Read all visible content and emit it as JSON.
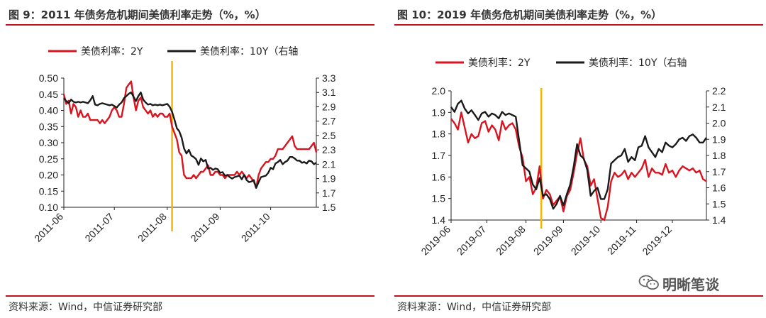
{
  "source_note": "资料来源：Wind，中信证券研究部",
  "watermark": "明晰笔谈",
  "colors": {
    "series_2y": "#d9141f",
    "series_10y": "#1a1a1a",
    "marker": "#f2b705",
    "rule": "#c0121e"
  },
  "chart_data": [
    {
      "type": "line",
      "title": "图 9：2011 年债务危机期间美债利率走势（%，%）",
      "legend": "top-center",
      "grid": false,
      "x_labels": [
        "2011-06",
        "2011-07",
        "2011-08",
        "2011-09",
        "2011-10"
      ],
      "x_range": [
        0,
        105
      ],
      "x_label_positions": [
        0,
        21,
        43,
        65,
        86
      ],
      "vline_x": 45,
      "y_left": {
        "ticks": [
          "0.10",
          "0.15",
          "0.20",
          "0.25",
          "0.30",
          "0.35",
          "0.40",
          "0.45",
          "0.50"
        ],
        "range": [
          0.1,
          0.5
        ]
      },
      "y_right": {
        "ticks": [
          "1.5",
          "1.7",
          "1.9",
          "2.1",
          "2.3",
          "2.5",
          "2.7",
          "2.9",
          "3.1",
          "3.3"
        ],
        "range": [
          1.5,
          3.3
        ]
      },
      "series": [
        {
          "name": "美债利率：2Y",
          "axis": "left",
          "x": [
            0,
            1,
            2,
            3,
            4,
            5,
            6,
            7,
            8,
            9,
            10,
            11,
            12,
            13,
            14,
            15,
            16,
            17,
            18,
            19,
            20,
            21,
            22,
            23,
            24,
            25,
            26,
            27,
            28,
            29,
            30,
            31,
            32,
            33,
            34,
            35,
            36,
            37,
            38,
            39,
            40,
            41,
            42,
            43,
            44,
            45,
            46,
            47,
            48,
            49,
            50,
            51,
            52,
            53,
            54,
            55,
            56,
            57,
            58,
            59,
            60,
            61,
            62,
            63,
            64,
            65,
            66,
            67,
            68,
            69,
            70,
            71,
            72,
            73,
            74,
            75,
            76,
            77,
            78,
            79,
            80,
            81,
            82,
            83,
            84,
            85,
            86,
            87,
            88,
            89,
            90,
            91,
            92,
            93,
            94,
            95,
            96,
            97,
            98,
            99,
            100,
            101,
            102,
            103,
            104,
            105
          ],
          "values": [
            0.45,
            0.42,
            0.43,
            0.39,
            0.42,
            0.41,
            0.38,
            0.4,
            0.38,
            0.38,
            0.39,
            0.37,
            0.37,
            0.37,
            0.37,
            0.36,
            0.37,
            0.36,
            0.37,
            0.38,
            0.4,
            0.41,
            0.4,
            0.38,
            0.38,
            0.42,
            0.47,
            0.48,
            0.49,
            0.44,
            0.4,
            0.43,
            0.44,
            0.41,
            0.4,
            0.39,
            0.4,
            0.38,
            0.39,
            0.38,
            0.39,
            0.39,
            0.38,
            0.38,
            0.39,
            0.35,
            0.33,
            0.31,
            0.27,
            0.26,
            0.2,
            0.19,
            0.19,
            0.19,
            0.2,
            0.19,
            0.2,
            0.21,
            0.21,
            0.22,
            0.23,
            0.2,
            0.2,
            0.21,
            0.21,
            0.2,
            0.2,
            0.19,
            0.2,
            0.2,
            0.2,
            0.2,
            0.21,
            0.2,
            0.21,
            0.2,
            0.19,
            0.2,
            0.19,
            0.18,
            0.16,
            0.2,
            0.22,
            0.23,
            0.24,
            0.24,
            0.25,
            0.25,
            0.26,
            0.28,
            0.28,
            0.28,
            0.29,
            0.3,
            0.31,
            0.32,
            0.29,
            0.28,
            0.28,
            0.28,
            0.28,
            0.28,
            0.28,
            0.29,
            0.3,
            0.27
          ]
        },
        {
          "name": "美债利率：10Y（右轴",
          "axis": "right",
          "x": [
            0,
            1,
            2,
            3,
            4,
            5,
            6,
            7,
            8,
            9,
            10,
            11,
            12,
            13,
            14,
            15,
            16,
            17,
            18,
            19,
            20,
            21,
            22,
            23,
            24,
            25,
            26,
            27,
            28,
            29,
            30,
            31,
            32,
            33,
            34,
            35,
            36,
            37,
            38,
            39,
            40,
            41,
            42,
            43,
            44,
            45,
            46,
            47,
            48,
            49,
            50,
            51,
            52,
            53,
            54,
            55,
            56,
            57,
            58,
            59,
            60,
            61,
            62,
            63,
            64,
            65,
            66,
            67,
            68,
            69,
            70,
            71,
            72,
            73,
            74,
            75,
            76,
            77,
            78,
            79,
            80,
            81,
            82,
            83,
            84,
            85,
            86,
            87,
            88,
            89,
            90,
            91,
            92,
            93,
            94,
            95,
            96,
            97,
            98,
            99,
            100,
            101,
            102,
            103,
            104,
            105
          ],
          "values": [
            3.02,
            2.98,
            2.95,
            3.0,
            2.97,
            2.96,
            2.97,
            2.96,
            2.97,
            2.96,
            2.95,
            2.99,
            3.05,
            2.93,
            2.92,
            2.94,
            2.95,
            2.94,
            2.93,
            2.92,
            2.93,
            2.91,
            2.89,
            2.93,
            2.96,
            3.02,
            3.05,
            3.08,
            3.1,
            3.04,
            2.98,
            3.05,
            3.1,
            3.0,
            2.96,
            2.93,
            2.94,
            2.92,
            2.93,
            2.92,
            2.93,
            2.92,
            2.93,
            2.94,
            2.9,
            2.83,
            2.72,
            2.6,
            2.56,
            2.47,
            2.32,
            2.25,
            2.3,
            2.22,
            2.2,
            2.17,
            2.09,
            2.18,
            2.14,
            2.16,
            2.04,
            2.05,
            2.02,
            2.04,
            2.03,
            1.98,
            1.99,
            1.94,
            1.95,
            1.92,
            1.9,
            1.92,
            1.93,
            1.94,
            1.89,
            1.95,
            1.88,
            1.85,
            1.86,
            1.88,
            1.77,
            1.85,
            1.92,
            1.93,
            1.94,
            1.98,
            2.05,
            2.03,
            2.11,
            2.13,
            2.16,
            2.1,
            2.13,
            2.15,
            2.2,
            2.2,
            2.18,
            2.15,
            2.15,
            2.12,
            2.13,
            2.11,
            2.15,
            2.14,
            2.1,
            2.12
          ]
        }
      ]
    },
    {
      "type": "line",
      "title": "图 10：2019 年债务危机期间美债利率走势（%，%）",
      "legend": "top-center",
      "grid": false,
      "x_labels": [
        "2019-06",
        "2019-07",
        "2019-08",
        "2019-09",
        "2019-10",
        "2019-11",
        "2019-12"
      ],
      "x_range": [
        0,
        150
      ],
      "x_label_positions": [
        0,
        21,
        44,
        66,
        88,
        109,
        130
      ],
      "vline_x": 53,
      "y_left": {
        "ticks": [
          "1.4",
          "1.5",
          "1.6",
          "1.7",
          "1.8",
          "1.9",
          "2.0"
        ],
        "range": [
          1.4,
          2.0
        ]
      },
      "y_right": {
        "ticks": [
          "1.4",
          "1.5",
          "1.6",
          "1.7",
          "1.8",
          "1.9",
          "2.0",
          "2.1",
          "2.2"
        ],
        "range": [
          1.4,
          2.2
        ]
      },
      "series": [
        {
          "name": "美债利率：2Y",
          "axis": "left",
          "x": [
            0,
            2,
            4,
            6,
            8,
            10,
            12,
            14,
            16,
            18,
            20,
            22,
            24,
            26,
            28,
            30,
            32,
            34,
            36,
            38,
            40,
            42,
            44,
            46,
            48,
            50,
            52,
            54,
            56,
            58,
            60,
            62,
            64,
            66,
            68,
            70,
            72,
            74,
            76,
            78,
            80,
            82,
            84,
            86,
            88,
            90,
            92,
            94,
            96,
            98,
            100,
            102,
            104,
            106,
            108,
            110,
            112,
            114,
            116,
            118,
            120,
            122,
            124,
            126,
            128,
            130,
            132,
            134,
            136,
            138,
            140,
            142,
            144,
            146,
            148,
            150
          ],
          "values": [
            1.87,
            1.85,
            1.82,
            1.9,
            1.83,
            1.76,
            1.8,
            1.78,
            1.79,
            1.85,
            1.86,
            1.81,
            1.84,
            1.82,
            1.77,
            1.86,
            1.82,
            1.84,
            1.85,
            1.82,
            1.74,
            1.69,
            1.58,
            1.6,
            1.52,
            1.55,
            1.65,
            1.5,
            1.54,
            1.52,
            1.47,
            1.49,
            1.51,
            1.44,
            1.51,
            1.54,
            1.62,
            1.71,
            1.78,
            1.68,
            1.65,
            1.56,
            1.59,
            1.5,
            1.41,
            1.4,
            1.46,
            1.58,
            1.62,
            1.6,
            1.61,
            1.63,
            1.59,
            1.62,
            1.6,
            1.62,
            1.64,
            1.68,
            1.6,
            1.64,
            1.62,
            1.62,
            1.61,
            1.66,
            1.62,
            1.63,
            1.6,
            1.63,
            1.65,
            1.64,
            1.63,
            1.64,
            1.62,
            1.63,
            1.59,
            1.58
          ]
        },
        {
          "name": "美债利率：10Y（右轴",
          "axis": "right",
          "x": [
            0,
            2,
            4,
            6,
            8,
            10,
            12,
            14,
            16,
            18,
            20,
            22,
            24,
            26,
            28,
            30,
            32,
            34,
            36,
            38,
            40,
            42,
            44,
            46,
            48,
            50,
            52,
            54,
            56,
            58,
            60,
            62,
            64,
            66,
            68,
            70,
            72,
            74,
            76,
            78,
            80,
            82,
            84,
            86,
            88,
            90,
            92,
            94,
            96,
            98,
            100,
            102,
            104,
            106,
            108,
            110,
            112,
            114,
            116,
            118,
            120,
            122,
            124,
            126,
            128,
            130,
            132,
            134,
            136,
            138,
            140,
            142,
            144,
            146,
            148,
            150
          ],
          "values": [
            2.1,
            2.07,
            2.12,
            2.14,
            2.09,
            2.06,
            2.08,
            2.05,
            2.02,
            2.06,
            2.07,
            2.04,
            2.06,
            2.05,
            2.03,
            2.07,
            2.05,
            2.06,
            2.05,
            2.04,
            1.89,
            1.74,
            1.72,
            1.7,
            1.62,
            1.59,
            1.66,
            1.55,
            1.56,
            1.53,
            1.47,
            1.5,
            1.55,
            1.49,
            1.56,
            1.62,
            1.73,
            1.87,
            1.8,
            1.78,
            1.71,
            1.55,
            1.58,
            1.6,
            1.53,
            1.53,
            1.59,
            1.75,
            1.77,
            1.79,
            1.8,
            1.84,
            1.76,
            1.79,
            1.77,
            1.85,
            1.86,
            1.92,
            1.85,
            1.82,
            1.79,
            1.84,
            1.82,
            1.88,
            1.86,
            1.85,
            1.87,
            1.9,
            1.91,
            1.89,
            1.92,
            1.93,
            1.91,
            1.88,
            1.88,
            1.91
          ]
        }
      ]
    }
  ]
}
